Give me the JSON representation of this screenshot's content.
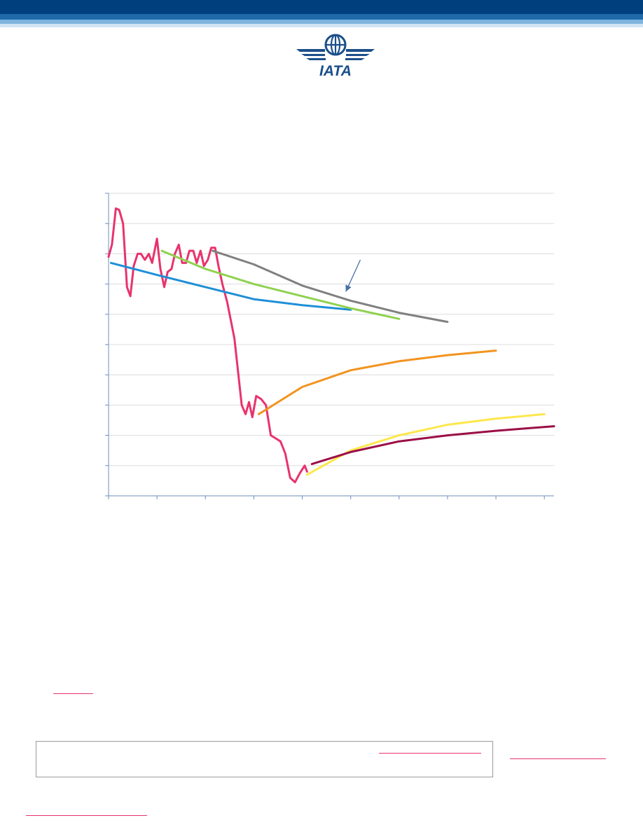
{
  "header": {
    "band_colors": [
      "#003f7d",
      "#1f6aa8",
      "#7fb4de",
      "#cfe3f3"
    ]
  },
  "logo": {
    "text": "IATA",
    "icon": "globe-wings-logo",
    "color": "#1b4f8a"
  },
  "chart_data": {
    "type": "line",
    "title": "",
    "xlabel": "",
    "ylabel": "",
    "xlim": [
      0,
      9.2
    ],
    "ylim": [
      0,
      10
    ],
    "x_ticks": [
      0,
      1,
      2,
      3,
      4,
      5,
      6,
      7,
      8,
      9
    ],
    "y_ticks": [
      0,
      1,
      2,
      3,
      4,
      5,
      6,
      7,
      8,
      9,
      10
    ],
    "grid": true,
    "series": [
      {
        "color": "#e8336d",
        "points": [
          [
            0,
            7.9
          ],
          [
            0.07,
            8.3
          ],
          [
            0.15,
            9.5
          ],
          [
            0.22,
            9.45
          ],
          [
            0.3,
            9.0
          ],
          [
            0.38,
            6.9
          ],
          [
            0.45,
            6.6
          ],
          [
            0.52,
            7.6
          ],
          [
            0.6,
            8.0
          ],
          [
            0.67,
            8.0
          ],
          [
            0.75,
            7.8
          ],
          [
            0.83,
            8.0
          ],
          [
            0.9,
            7.7
          ],
          [
            1.0,
            8.5
          ],
          [
            1.07,
            7.5
          ],
          [
            1.15,
            6.9
          ],
          [
            1.22,
            7.4
          ],
          [
            1.3,
            7.5
          ],
          [
            1.37,
            8.0
          ],
          [
            1.45,
            8.3
          ],
          [
            1.52,
            7.7
          ],
          [
            1.6,
            7.7
          ],
          [
            1.67,
            8.1
          ],
          [
            1.75,
            8.1
          ],
          [
            1.82,
            7.7
          ],
          [
            1.9,
            8.1
          ],
          [
            1.97,
            7.6
          ],
          [
            2.05,
            7.8
          ],
          [
            2.12,
            8.2
          ],
          [
            2.2,
            8.2
          ],
          [
            2.27,
            7.6
          ],
          [
            2.35,
            7.0
          ],
          [
            2.45,
            6.4
          ],
          [
            2.6,
            5.2
          ],
          [
            2.75,
            3.0
          ],
          [
            2.83,
            2.7
          ],
          [
            2.9,
            3.1
          ],
          [
            2.97,
            2.6
          ],
          [
            3.05,
            3.3
          ],
          [
            3.15,
            3.2
          ],
          [
            3.25,
            3.0
          ],
          [
            3.35,
            2.0
          ],
          [
            3.45,
            1.9
          ],
          [
            3.55,
            1.8
          ],
          [
            3.65,
            1.4
          ],
          [
            3.75,
            0.6
          ],
          [
            3.85,
            0.45
          ],
          [
            3.95,
            0.75
          ],
          [
            4.05,
            1.0
          ],
          [
            4.1,
            0.8
          ]
        ]
      },
      {
        "color": "#1e8fd8",
        "points": [
          [
            0.05,
            7.7
          ],
          [
            1.0,
            7.3
          ],
          [
            2.0,
            6.9
          ],
          [
            3.0,
            6.5
          ],
          [
            4.0,
            6.3
          ],
          [
            5.0,
            6.15
          ]
        ]
      },
      {
        "color": "#8fd14f",
        "points": [
          [
            1.1,
            8.1
          ],
          [
            2.0,
            7.5
          ],
          [
            3.0,
            7.0
          ],
          [
            4.0,
            6.6
          ],
          [
            5.0,
            6.2
          ],
          [
            6.0,
            5.85
          ]
        ]
      },
      {
        "color": "#808080",
        "points": [
          [
            2.15,
            8.1
          ],
          [
            3.0,
            7.65
          ],
          [
            4.0,
            6.95
          ],
          [
            5.0,
            6.45
          ],
          [
            6.0,
            6.05
          ],
          [
            7.0,
            5.75
          ]
        ]
      },
      {
        "color": "#f2931f",
        "points": [
          [
            3.1,
            2.7
          ],
          [
            4.0,
            3.6
          ],
          [
            5.0,
            4.15
          ],
          [
            6.0,
            4.45
          ],
          [
            7.0,
            4.65
          ],
          [
            8.0,
            4.8
          ]
        ]
      },
      {
        "color": "#fde74c",
        "points": [
          [
            4.1,
            0.7
          ],
          [
            5.0,
            1.5
          ],
          [
            6.0,
            2.0
          ],
          [
            7.0,
            2.35
          ],
          [
            8.0,
            2.55
          ],
          [
            9.0,
            2.7
          ]
        ]
      },
      {
        "color": "#9b0e46",
        "points": [
          [
            4.2,
            1.05
          ],
          [
            5.0,
            1.45
          ],
          [
            6.0,
            1.8
          ],
          [
            7.0,
            2.0
          ],
          [
            8.0,
            2.15
          ],
          [
            9.2,
            2.3
          ]
        ]
      }
    ],
    "annotation_arrow": {
      "from": [
        5.2,
        7.8
      ],
      "to": [
        4.9,
        6.75
      ],
      "color": "#4a6fa5"
    }
  },
  "links": {
    "color": "#e8336d"
  },
  "note_box": {
    "border_color": "#9a9a9a"
  }
}
